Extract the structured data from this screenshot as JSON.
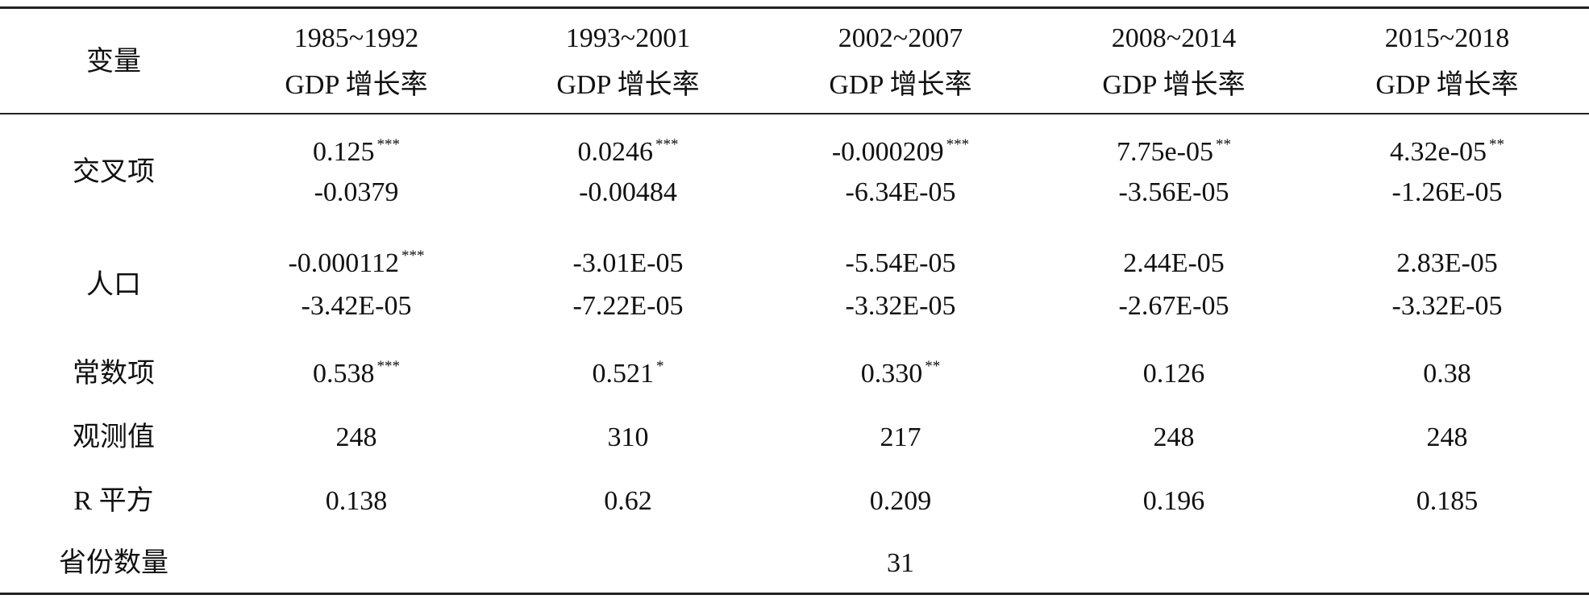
{
  "table": {
    "corner": "变量",
    "columns": [
      [
        "1985~1992",
        "GDP 增长率"
      ],
      [
        "1993~2001",
        "GDP 增长率"
      ],
      [
        "2002~2007",
        "GDP 增长率"
      ],
      [
        "2008~2014",
        "GDP 增长率"
      ],
      [
        "2015~2018",
        "GDP 增长率"
      ]
    ],
    "rows": [
      {
        "label": "交叉项",
        "cells": [
          [
            {
              "text": "0.125",
              "sig": "***"
            },
            {
              "text": "-0.0379"
            }
          ],
          [
            {
              "text": "0.0246",
              "sig": "***"
            },
            {
              "text": "-0.00484"
            }
          ],
          [
            {
              "text": "-0.000209",
              "sig": "***"
            },
            {
              "text": "-6.34E-05"
            }
          ],
          [
            {
              "text": "7.75e-05",
              "sig": "**"
            },
            {
              "text": "-3.56E-05"
            }
          ],
          [
            {
              "text": "4.32e-05",
              "sig": "**"
            },
            {
              "text": "-1.26E-05"
            }
          ]
        ]
      },
      {
        "label": "人口",
        "cells": [
          [
            {
              "text": "-0.000112",
              "sig": "***"
            },
            {
              "text": "-3.42E-05"
            }
          ],
          [
            {
              "text": "-3.01E-05"
            },
            {
              "text": "-7.22E-05"
            }
          ],
          [
            {
              "text": "-5.54E-05"
            },
            {
              "text": "-3.32E-05"
            }
          ],
          [
            {
              "text": "2.44E-05"
            },
            {
              "text": "-2.67E-05"
            }
          ],
          [
            {
              "text": "2.83E-05"
            },
            {
              "text": "-3.32E-05"
            }
          ]
        ]
      },
      {
        "label": "常数项",
        "cells": [
          [
            {
              "text": "0.538",
              "sig": "***"
            }
          ],
          [
            {
              "text": "0.521",
              "sig": "*"
            }
          ],
          [
            {
              "text": "0.330",
              "sig": "**"
            }
          ],
          [
            {
              "text": "0.126"
            }
          ],
          [
            {
              "text": "0.38"
            }
          ]
        ]
      },
      {
        "label": "观测值",
        "cells": [
          [
            {
              "text": "248"
            }
          ],
          [
            {
              "text": "310"
            }
          ],
          [
            {
              "text": "217"
            }
          ],
          [
            {
              "text": "248"
            }
          ],
          [
            {
              "text": "248"
            }
          ]
        ]
      },
      {
        "label": "R 平方",
        "cells": [
          [
            {
              "text": "0.138"
            }
          ],
          [
            {
              "text": "0.62"
            }
          ],
          [
            {
              "text": "0.209"
            }
          ],
          [
            {
              "text": "0.196"
            }
          ],
          [
            {
              "text": "0.185"
            }
          ]
        ]
      }
    ],
    "footer": {
      "label": "省份数量",
      "value": "31"
    }
  }
}
